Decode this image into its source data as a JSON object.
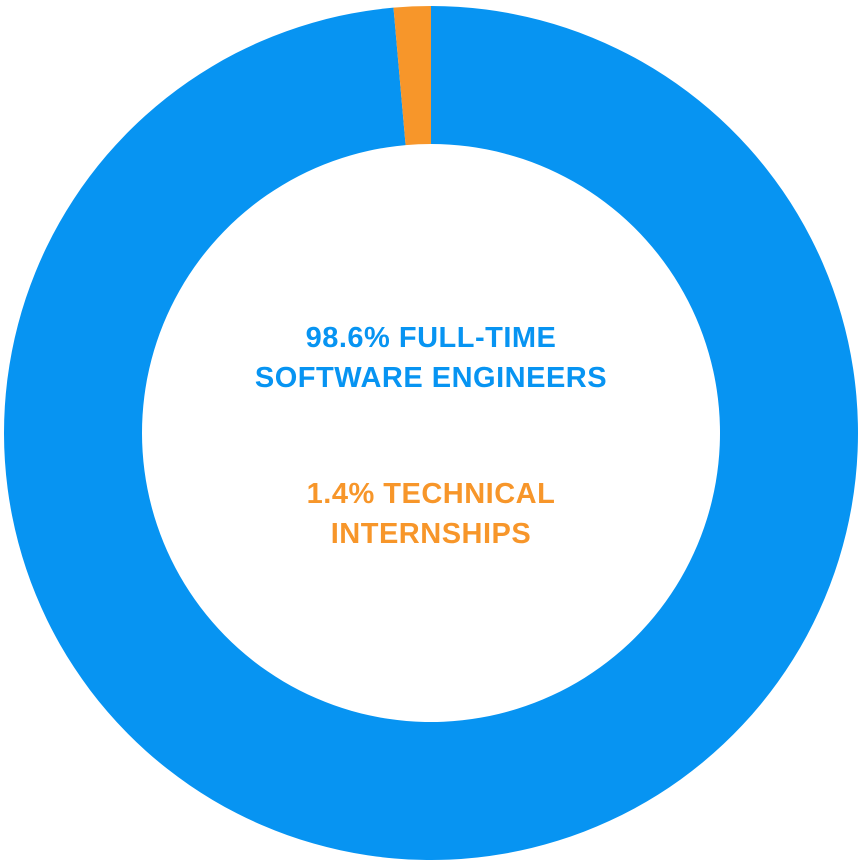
{
  "chart_data": {
    "type": "pie",
    "style": "donut",
    "title": "",
    "slices": [
      {
        "value": 98.6,
        "label_line1": "98.6% FULL-TIME",
        "label_line2": "SOFTWARE ENGINEERS",
        "color": "#0794f2"
      },
      {
        "value": 1.4,
        "label_line1": "1.4% TECHNICAL",
        "label_line2": "INTERNSHIPS",
        "color": "#f7962a"
      }
    ],
    "legend": "none"
  }
}
